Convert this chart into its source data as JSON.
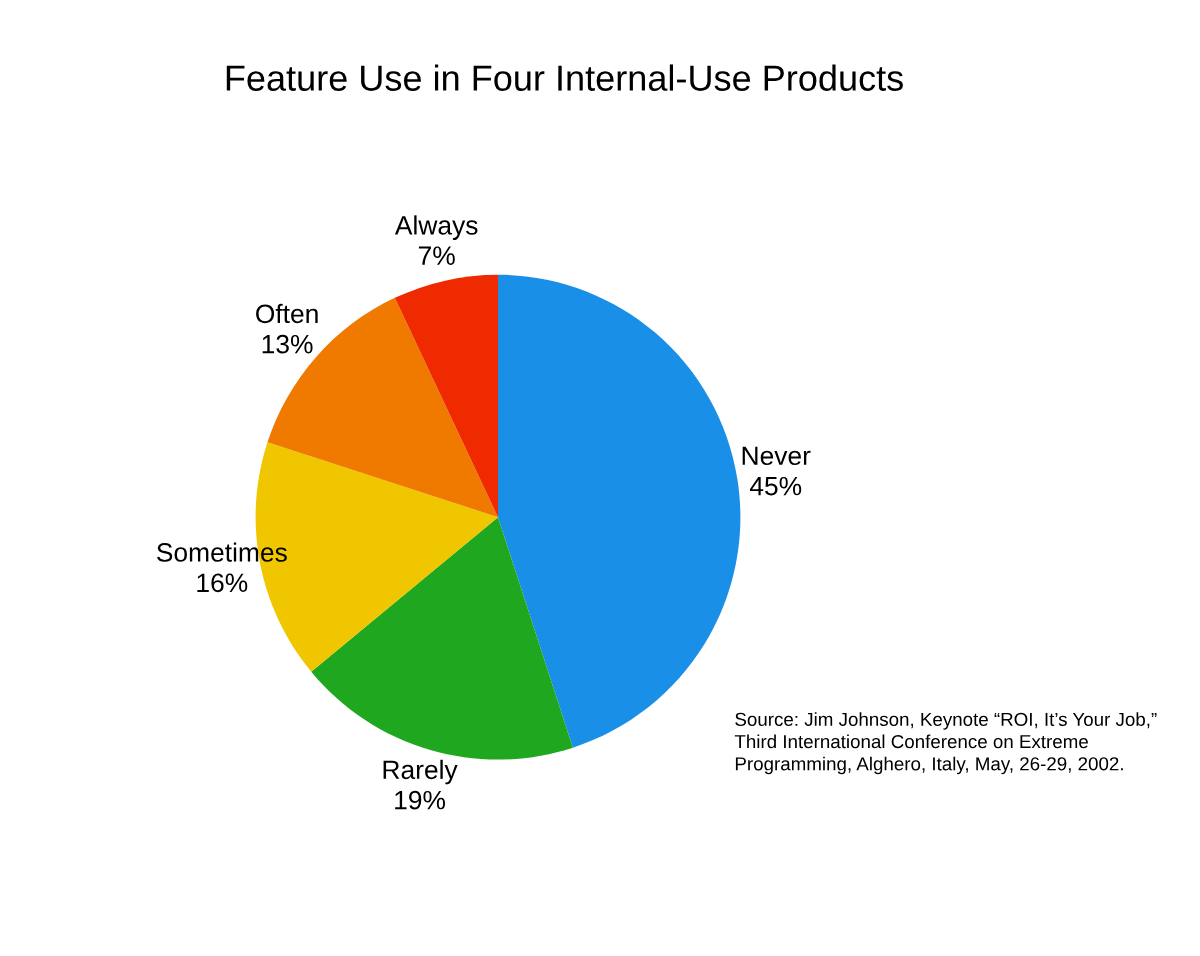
{
  "chart_data": {
    "type": "pie",
    "title": "Feature Use in Four Internal-Use Products",
    "categories": [
      "Never",
      "Rarely",
      "Sometimes",
      "Often",
      "Always"
    ],
    "values": [
      45,
      19,
      16,
      13,
      7
    ],
    "value_labels": [
      "45%",
      "19%",
      "16%",
      "13%",
      "7%"
    ],
    "colors": [
      "#1a8fe8",
      "#1fa81f",
      "#efc600",
      "#f07a00",
      "#f02a00"
    ],
    "annotations": [
      "Source: Jim Johnson, Keynote “ROI, It’s Your Job,” Third International Conference on Extreme Programming, Alghero, Italy, May, 26-29, 2002."
    ]
  }
}
